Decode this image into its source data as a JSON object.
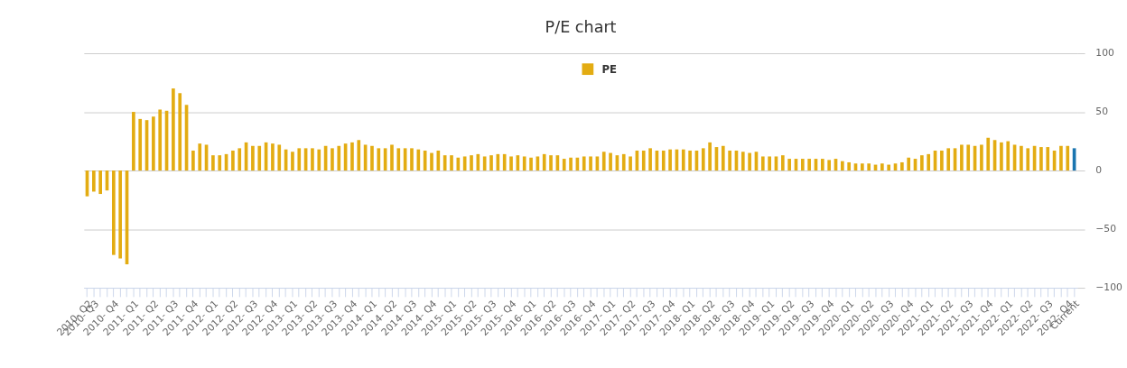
{
  "chart_data": {
    "type": "bar",
    "title": "P/E chart",
    "categories": [
      "2010- Q2",
      "2010- Q3",
      null,
      null,
      "2010- Q4",
      null,
      null,
      "2011- Q1",
      null,
      null,
      "2011- Q2",
      null,
      null,
      "2011- Q3",
      null,
      null,
      "2011- Q4",
      null,
      null,
      "2012- Q1",
      null,
      null,
      "2012- Q2",
      null,
      null,
      "2012- Q3",
      null,
      null,
      "2012- Q4",
      null,
      null,
      "2013- Q1",
      null,
      null,
      "2013- Q2",
      null,
      null,
      "2013- Q3",
      null,
      null,
      "2013- Q4",
      null,
      null,
      "2014- Q1",
      null,
      null,
      "2014- Q2",
      null,
      null,
      "2014- Q3",
      null,
      null,
      "2014- Q4",
      null,
      null,
      "2015- Q1",
      null,
      null,
      "2015- Q2",
      null,
      null,
      "2015- Q3",
      null,
      null,
      "2015- Q4",
      null,
      null,
      "2016- Q1",
      null,
      null,
      "2016- Q2",
      null,
      null,
      "2016- Q3",
      null,
      null,
      "2016- Q4",
      null,
      null,
      "2017- Q1",
      null,
      null,
      "2017- Q2",
      null,
      null,
      "2017- Q3",
      null,
      null,
      "2017- Q4",
      null,
      null,
      "2018- Q1",
      null,
      null,
      "2018- Q2",
      null,
      null,
      "2018- Q3",
      null,
      null,
      "2018- Q4",
      null,
      null,
      "2019- Q1",
      null,
      null,
      "2019- Q2",
      null,
      null,
      "2019- Q3",
      null,
      null,
      "2019- Q4",
      null,
      null,
      "2020- Q1",
      null,
      null,
      "2020- Q2",
      null,
      null,
      "2020- Q3",
      null,
      null,
      "2020- Q4",
      null,
      null,
      "2021- Q1",
      null,
      null,
      "2021- Q2",
      null,
      null,
      "2021- Q3",
      null,
      null,
      "2021- Q4",
      null,
      null,
      "2022- Q1",
      null,
      null,
      "2022- Q2",
      null,
      null,
      "2022- Q3",
      null,
      null,
      "2022- Q4",
      "Current"
    ],
    "series": [
      {
        "name": "PE",
        "color": "#e3ac12",
        "values": [
          -22,
          -18,
          -20,
          -17,
          -72,
          -75,
          -80,
          50,
          44,
          43,
          46,
          52,
          51,
          70,
          66,
          56,
          17,
          23,
          22,
          13,
          13,
          14,
          17,
          19,
          24,
          21,
          21,
          24,
          23,
          22,
          18,
          16,
          19,
          19,
          19,
          18,
          21,
          19,
          21,
          23,
          24,
          26,
          22,
          21,
          19,
          19,
          22,
          19,
          19,
          19,
          18,
          17,
          15,
          17,
          13,
          13,
          11,
          12,
          13,
          14,
          12,
          13,
          14,
          14,
          12,
          13,
          12,
          11,
          12,
          14,
          13,
          13,
          10,
          11,
          11,
          12,
          12,
          12,
          16,
          15,
          13,
          14,
          12,
          17,
          17,
          19,
          17,
          17,
          18,
          18,
          18,
          17,
          17,
          19,
          24,
          20,
          21,
          17,
          17,
          16,
          15,
          16,
          12,
          12,
          12,
          13,
          10,
          10,
          10,
          10,
          10,
          10,
          9,
          10,
          8,
          7,
          6,
          6,
          6,
          5,
          6,
          5,
          6,
          7,
          11,
          10,
          13,
          14,
          17,
          17,
          19,
          19,
          22,
          22,
          21,
          22,
          28,
          26,
          24,
          25,
          22,
          21,
          19,
          21,
          20,
          20,
          17,
          21,
          21,
          19
        ],
        "colors": [
          "#e3ac12",
          "#e3ac12",
          "#e3ac12",
          "#e3ac12",
          "#e3ac12",
          "#e3ac12",
          "#e3ac12",
          "#e3ac12",
          "#e3ac12",
          "#e3ac12",
          "#e3ac12",
          "#e3ac12",
          "#e3ac12",
          "#e3ac12",
          "#e3ac12",
          "#e3ac12",
          "#e3ac12",
          "#e3ac12",
          "#e3ac12",
          "#e3ac12",
          "#e3ac12",
          "#e3ac12",
          "#e3ac12",
          "#e3ac12",
          "#e3ac12",
          "#e3ac12",
          "#e3ac12",
          "#e3ac12",
          "#e3ac12",
          "#e3ac12",
          "#e3ac12",
          "#e3ac12",
          "#e3ac12",
          "#e3ac12",
          "#e3ac12",
          "#e3ac12",
          "#e3ac12",
          "#e3ac12",
          "#e3ac12",
          "#e3ac12",
          "#e3ac12",
          "#e3ac12",
          "#e3ac12",
          "#e3ac12",
          "#e3ac12",
          "#e3ac12",
          "#e3ac12",
          "#e3ac12",
          "#e3ac12",
          "#e3ac12",
          "#e3ac12",
          "#e3ac12",
          "#e3ac12",
          "#e3ac12",
          "#e3ac12",
          "#e3ac12",
          "#e3ac12",
          "#e3ac12",
          "#e3ac12",
          "#e3ac12",
          "#e3ac12",
          "#e3ac12",
          "#e3ac12",
          "#e3ac12",
          "#e3ac12",
          "#e3ac12",
          "#e3ac12",
          "#e3ac12",
          "#e3ac12",
          "#e3ac12",
          "#e3ac12",
          "#e3ac12",
          "#e3ac12",
          "#e3ac12",
          "#e3ac12",
          "#e3ac12",
          "#e3ac12",
          "#e3ac12",
          "#e3ac12",
          "#e3ac12",
          "#e3ac12",
          "#e3ac12",
          "#e3ac12",
          "#e3ac12",
          "#e3ac12",
          "#e3ac12",
          "#e3ac12",
          "#e3ac12",
          "#e3ac12",
          "#e3ac12",
          "#e3ac12",
          "#e3ac12",
          "#e3ac12",
          "#e3ac12",
          "#e3ac12",
          "#e3ac12",
          "#e3ac12",
          "#e3ac12",
          "#e3ac12",
          "#e3ac12",
          "#e3ac12",
          "#e3ac12",
          "#e3ac12",
          "#e3ac12",
          "#e3ac12",
          "#e3ac12",
          "#e3ac12",
          "#e3ac12",
          "#e3ac12",
          "#e3ac12",
          "#e3ac12",
          "#e3ac12",
          "#e3ac12",
          "#e3ac12",
          "#e3ac12",
          "#e3ac12",
          "#e3ac12",
          "#e3ac12",
          "#e3ac12",
          "#e3ac12",
          "#e3ac12",
          "#e3ac12",
          "#e3ac12",
          "#e3ac12",
          "#e3ac12",
          "#e3ac12",
          "#e3ac12",
          "#e3ac12",
          "#e3ac12",
          "#e3ac12",
          "#e3ac12",
          "#e3ac12",
          "#e3ac12",
          "#e3ac12",
          "#e3ac12",
          "#e3ac12",
          "#e3ac12",
          "#e3ac12",
          "#e3ac12",
          "#e3ac12",
          "#e3ac12",
          "#e3ac12",
          "#e3ac12",
          "#e3ac12",
          "#e3ac12",
          "#e3ac12",
          "#e3ac12",
          "#e3ac12",
          "#e3ac12",
          "#1a75b0"
        ]
      }
    ],
    "ylim": [
      -100,
      100
    ],
    "yticks": [
      -100,
      -50,
      0,
      50,
      100
    ],
    "grid": "y",
    "legend": "top"
  }
}
